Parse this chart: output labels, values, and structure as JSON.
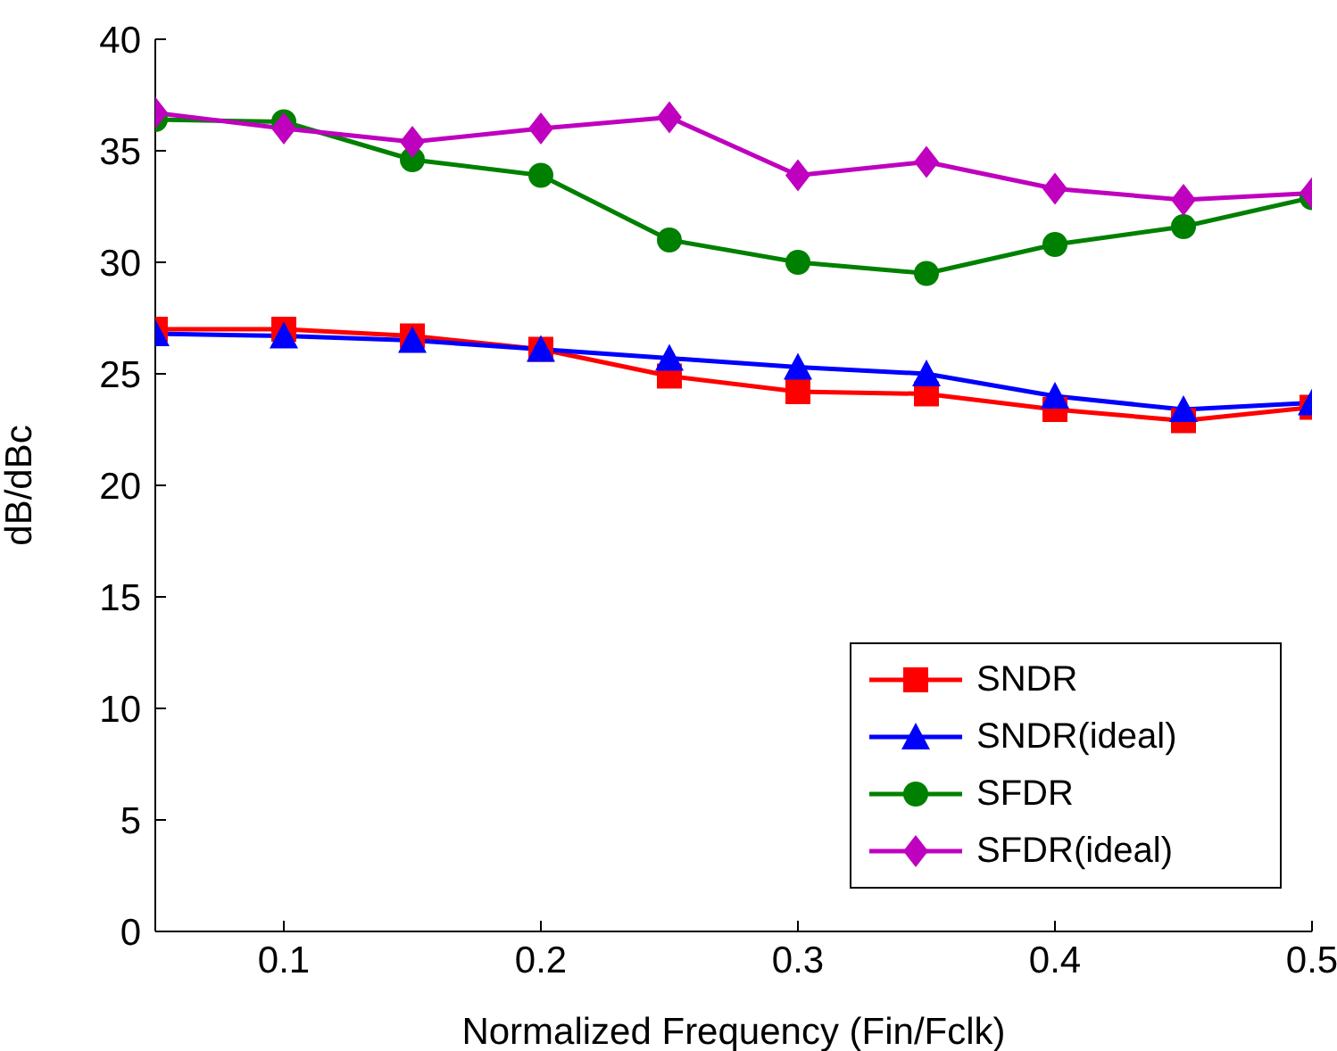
{
  "chart_data": {
    "type": "line",
    "xlabel": "Normalized Frequency (Fin/Fclk)",
    "ylabel": "dB/dBc",
    "x": [
      0.05,
      0.1,
      0.15,
      0.2,
      0.25,
      0.3,
      0.35,
      0.4,
      0.45,
      0.5
    ],
    "xlim": [
      0.05,
      0.5
    ],
    "xticks": [
      0.1,
      0.2,
      0.3,
      0.4,
      0.5
    ],
    "ylim": [
      0,
      40
    ],
    "yticks": [
      0,
      5,
      10,
      15,
      20,
      25,
      30,
      35,
      40
    ],
    "grid": false,
    "legend": "bottom right",
    "series": [
      {
        "name": "SNDR",
        "color": "#ff0000",
        "marker": "square",
        "values": [
          27.0,
          27.0,
          26.7,
          26.1,
          24.9,
          24.2,
          24.1,
          23.4,
          22.9,
          23.5
        ]
      },
      {
        "name": "SNDR(ideal)",
        "color": "#0000ff",
        "marker": "triangle",
        "values": [
          26.8,
          26.7,
          26.5,
          26.1,
          25.7,
          25.3,
          25.0,
          24.0,
          23.4,
          23.7
        ]
      },
      {
        "name": "SFDR",
        "color": "#008000",
        "marker": "circle",
        "values": [
          36.4,
          36.3,
          34.6,
          33.9,
          31.0,
          30.0,
          29.5,
          30.8,
          31.6,
          32.9
        ]
      },
      {
        "name": "SFDR(ideal)",
        "color": "#bf00bf",
        "marker": "diamond",
        "values": [
          36.7,
          36.0,
          35.4,
          36.0,
          36.5,
          33.9,
          34.5,
          33.3,
          32.8,
          33.1
        ]
      }
    ]
  }
}
